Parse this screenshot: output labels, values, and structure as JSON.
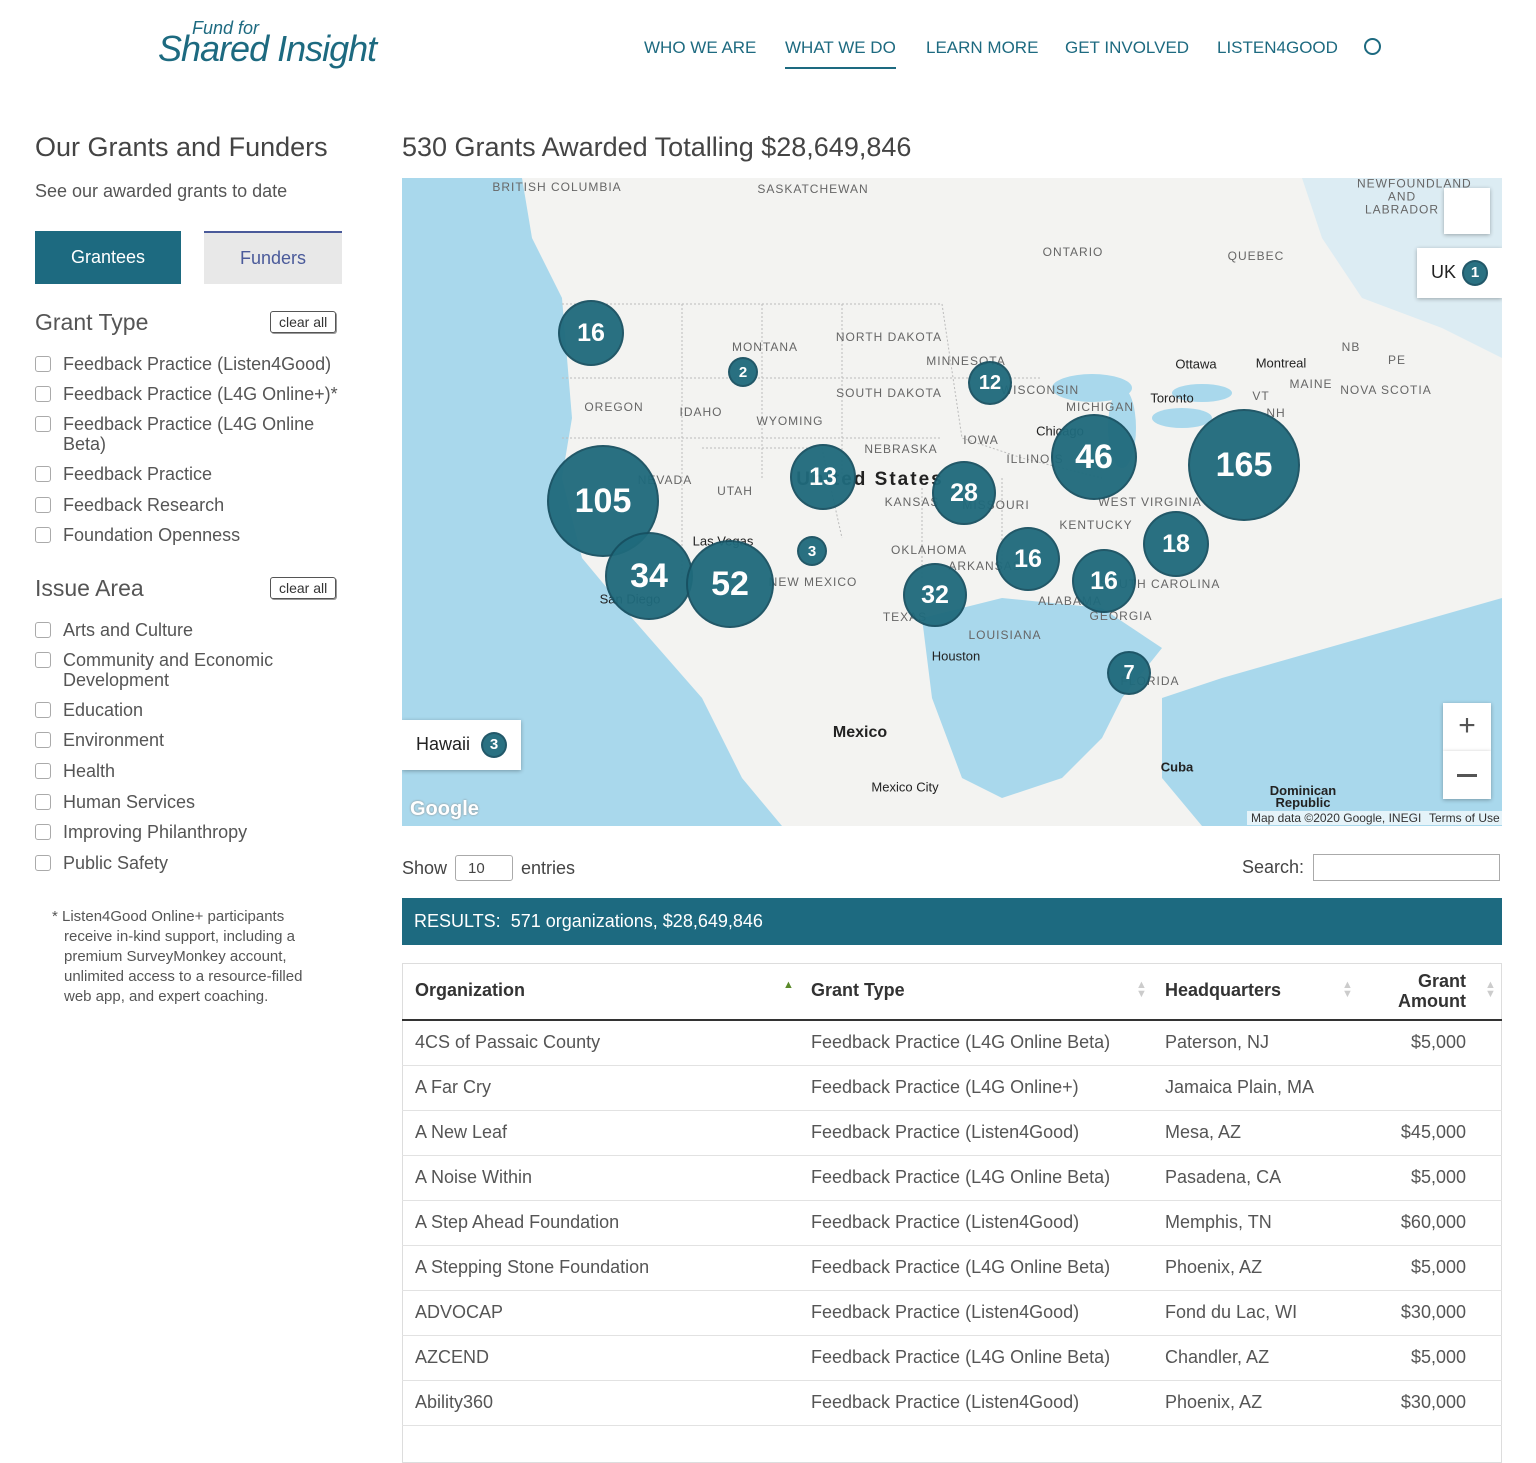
{
  "header": {
    "logo_small": "Fund for",
    "logo_main": "Shared Insight",
    "nav": [
      "WHO WE ARE",
      "WHAT WE DO",
      "LEARN MORE",
      "GET INVOLVED",
      "LISTEN4GOOD"
    ]
  },
  "sidebar": {
    "title": "Our Grants and Funders",
    "subtitle": "See our awarded grants to date",
    "tabs": [
      "Grantees",
      "Funders"
    ],
    "grant_type": {
      "heading": "Grant Type",
      "clear": "clear all",
      "options": [
        "Feedback Practice (Listen4Good)",
        "Feedback Practice (L4G Online+)*",
        "Feedback Practice (L4G Online Beta)",
        "Feedback Practice",
        "Feedback Research",
        "Foundation Openness"
      ]
    },
    "issue_area": {
      "heading": "Issue Area",
      "clear": "clear all",
      "options": [
        "Arts and Culture",
        "Community and Economic Development",
        "Education",
        "Environment",
        "Health",
        "Human Services",
        "Improving Philanthropy",
        "Public Safety"
      ]
    },
    "footnote": "* Listen4Good Online+ participants receive in-kind support, including a premium SurveyMonkey account, unlimited access to a resource-filled web app, and expert coaching."
  },
  "main": {
    "title": "530 Grants Awarded Totalling $28,649,846",
    "map": {
      "labels": [
        "BRITISH COLUMBIA",
        "SASKATCHEWAN",
        "ONTARIO",
        "QUEBEC",
        "NEWFOUNDLAND AND LABRADOR",
        "MONTANA",
        "NORTH DAKOTA",
        "MINNESOTA",
        "OREGON",
        "IDAHO",
        "WYOMING",
        "SOUTH DAKOTA",
        "WISCONSIN",
        "MICHIGAN",
        "IOWA",
        "NEBRASKA",
        "ILLINOIS",
        "NEVADA",
        "UTAH",
        "KANSAS",
        "MISSOURI",
        "KENTUCKY",
        "WEST VIRGINIA",
        "OKLAHOMA",
        "NEW MEXICO",
        "ARKANSAS",
        "TEXAS",
        "LOUISIANA",
        "ALABAMA",
        "GEORGIA",
        "SOUTH CAROLINA",
        "FLORIDA",
        "NB",
        "PE",
        "MAINE",
        "NOVA SCOTIA",
        "VT",
        "NH",
        "United States",
        "Mexico",
        "Cuba",
        "Dominican Republic",
        "Ottawa",
        "Montreal",
        "Toronto",
        "Chicago",
        "Las Vegas",
        "Houston",
        "Mexico City",
        "San Diego"
      ],
      "clusters": [
        16,
        2,
        12,
        46,
        165,
        105,
        13,
        28,
        34,
        52,
        3,
        16,
        18,
        16,
        32,
        7
      ],
      "uk": {
        "label": "UK",
        "count": 1
      },
      "hawaii": {
        "label": "Hawaii",
        "count": 3
      },
      "google": "Google",
      "attribution": "Map data ©2020 Google, INEGI",
      "terms": "Terms of Use"
    },
    "controls": {
      "show": "Show",
      "page_size": "10",
      "entries": "entries",
      "search": "Search:"
    },
    "results": "RESULTS:  571 organizations, $28,649,846",
    "table": {
      "columns": [
        "Organization",
        "Grant Type",
        "Headquarters",
        "Grant Amount"
      ],
      "rows": [
        [
          "4CS of Passaic County",
          "Feedback Practice (L4G Online Beta)",
          "Paterson, NJ",
          "$5,000"
        ],
        [
          "A Far Cry",
          "Feedback Practice (L4G Online+)",
          "Jamaica Plain, MA",
          null
        ],
        [
          "A New Leaf",
          "Feedback Practice (Listen4Good)",
          "Mesa, AZ",
          "$45,000"
        ],
        [
          "A Noise Within",
          "Feedback Practice (L4G Online Beta)",
          "Pasadena, CA",
          "$5,000"
        ],
        [
          "A Step Ahead Foundation",
          "Feedback Practice (Listen4Good)",
          "Memphis, TN",
          "$60,000"
        ],
        [
          "A Stepping Stone Foundation",
          "Feedback Practice (L4G Online Beta)",
          "Phoenix, AZ",
          "$5,000"
        ],
        [
          "ADVOCAP",
          "Feedback Practice (Listen4Good)",
          "Fond du Lac, WI",
          "$30,000"
        ],
        [
          "AZCEND",
          "Feedback Practice (L4G Online Beta)",
          "Chandler, AZ",
          "$5,000"
        ],
        [
          "Ability360",
          "Feedback Practice (Listen4Good)",
          "Phoenix, AZ",
          "$30,000"
        ]
      ]
    }
  }
}
